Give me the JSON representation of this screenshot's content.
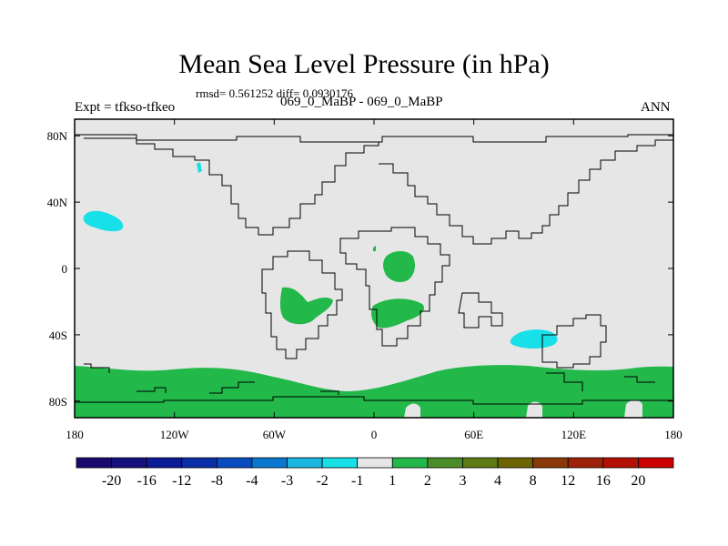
{
  "header": {
    "title": "Mean Sea Level Pressure (in hPa)",
    "stats": "rmsd= 0.561252 diff= 0.0930176",
    "left_label": "Expt = tfkso-tfkeo",
    "center_label": "069_0_MaBP - 069_0_MaBP",
    "right_label": "ANN"
  },
  "chart_data": {
    "type": "heatmap",
    "title": "Mean Sea Level Pressure (in hPa)",
    "projection": "cylindrical equidistant",
    "xlim": [
      -180,
      180
    ],
    "ylim": [
      -90,
      90
    ],
    "x_ticks": [
      {
        "value": -180,
        "label": "180"
      },
      {
        "value": -120,
        "label": "120W"
      },
      {
        "value": -60,
        "label": "60W"
      },
      {
        "value": 0,
        "label": "0"
      },
      {
        "value": 60,
        "label": "60E"
      },
      {
        "value": 120,
        "label": "120E"
      },
      {
        "value": 180,
        "label": "180"
      }
    ],
    "y_ticks": [
      {
        "value": 80,
        "label": "80N"
      },
      {
        "value": 40,
        "label": "40N"
      },
      {
        "value": 0,
        "label": "0"
      },
      {
        "value": -40,
        "label": "40S"
      },
      {
        "value": -80,
        "label": "80S"
      }
    ],
    "background_class": "-1 to 1",
    "colorbar": {
      "labels": [
        "-20",
        "-16",
        "-12",
        "-8",
        "-4",
        "-3",
        "-2",
        "-1",
        "1",
        "2",
        "3",
        "4",
        "8",
        "12",
        "16",
        "20"
      ],
      "colors": [
        "#1a0a6e",
        "#16107e",
        "#0c1c96",
        "#0a2ea8",
        "#0a4cc0",
        "#0a78d0",
        "#1cb6e0",
        "#18e0e8",
        "#e6e6e6",
        "#22b84a",
        "#4a8c28",
        "#5e7a14",
        "#6e6406",
        "#8a3a08",
        "#9e2008",
        "#b41004",
        "#cc0000"
      ]
    },
    "fields": [
      {
        "class": "1 to 2",
        "color": "#22b84a",
        "lon": [
          -180,
          180
        ],
        "lat": [
          -90,
          -62
        ],
        "region": "Southern Ocean / Antarctic band"
      },
      {
        "class": "1 to 2",
        "color": "#22b84a",
        "lon": [
          -52,
          -26
        ],
        "lat": [
          -35,
          -17
        ],
        "region": "South America"
      },
      {
        "class": "1 to 2",
        "color": "#22b84a",
        "lon": [
          -2,
          30
        ],
        "lat": [
          -37,
          -18
        ],
        "region": "Southern Africa"
      },
      {
        "class": "1 to 2",
        "color": "#22b84a",
        "lon": [
          5,
          22
        ],
        "lat": [
          -7,
          10
        ],
        "region": "Central Africa"
      },
      {
        "class": "1 to 2",
        "color": "#22b84a",
        "lon": [
          -0.5,
          1
        ],
        "lat": [
          11,
          13
        ],
        "region": "West Africa"
      },
      {
        "class": "-2 to -1",
        "color": "#18e0e8",
        "lon": [
          -180,
          -164
        ],
        "lat": [
          23,
          35
        ],
        "region": "North Pacific"
      },
      {
        "class": "-2 to -1",
        "color": "#18e0e8",
        "lon": [
          83,
          112
        ],
        "lat": [
          -47,
          -35
        ],
        "region": "South Indian Ocean"
      },
      {
        "class": "-2 to -1",
        "color": "#18e0e8",
        "lon": [
          -106,
          -104
        ],
        "lat": [
          57,
          63
        ],
        "region": "North America"
      }
    ]
  }
}
